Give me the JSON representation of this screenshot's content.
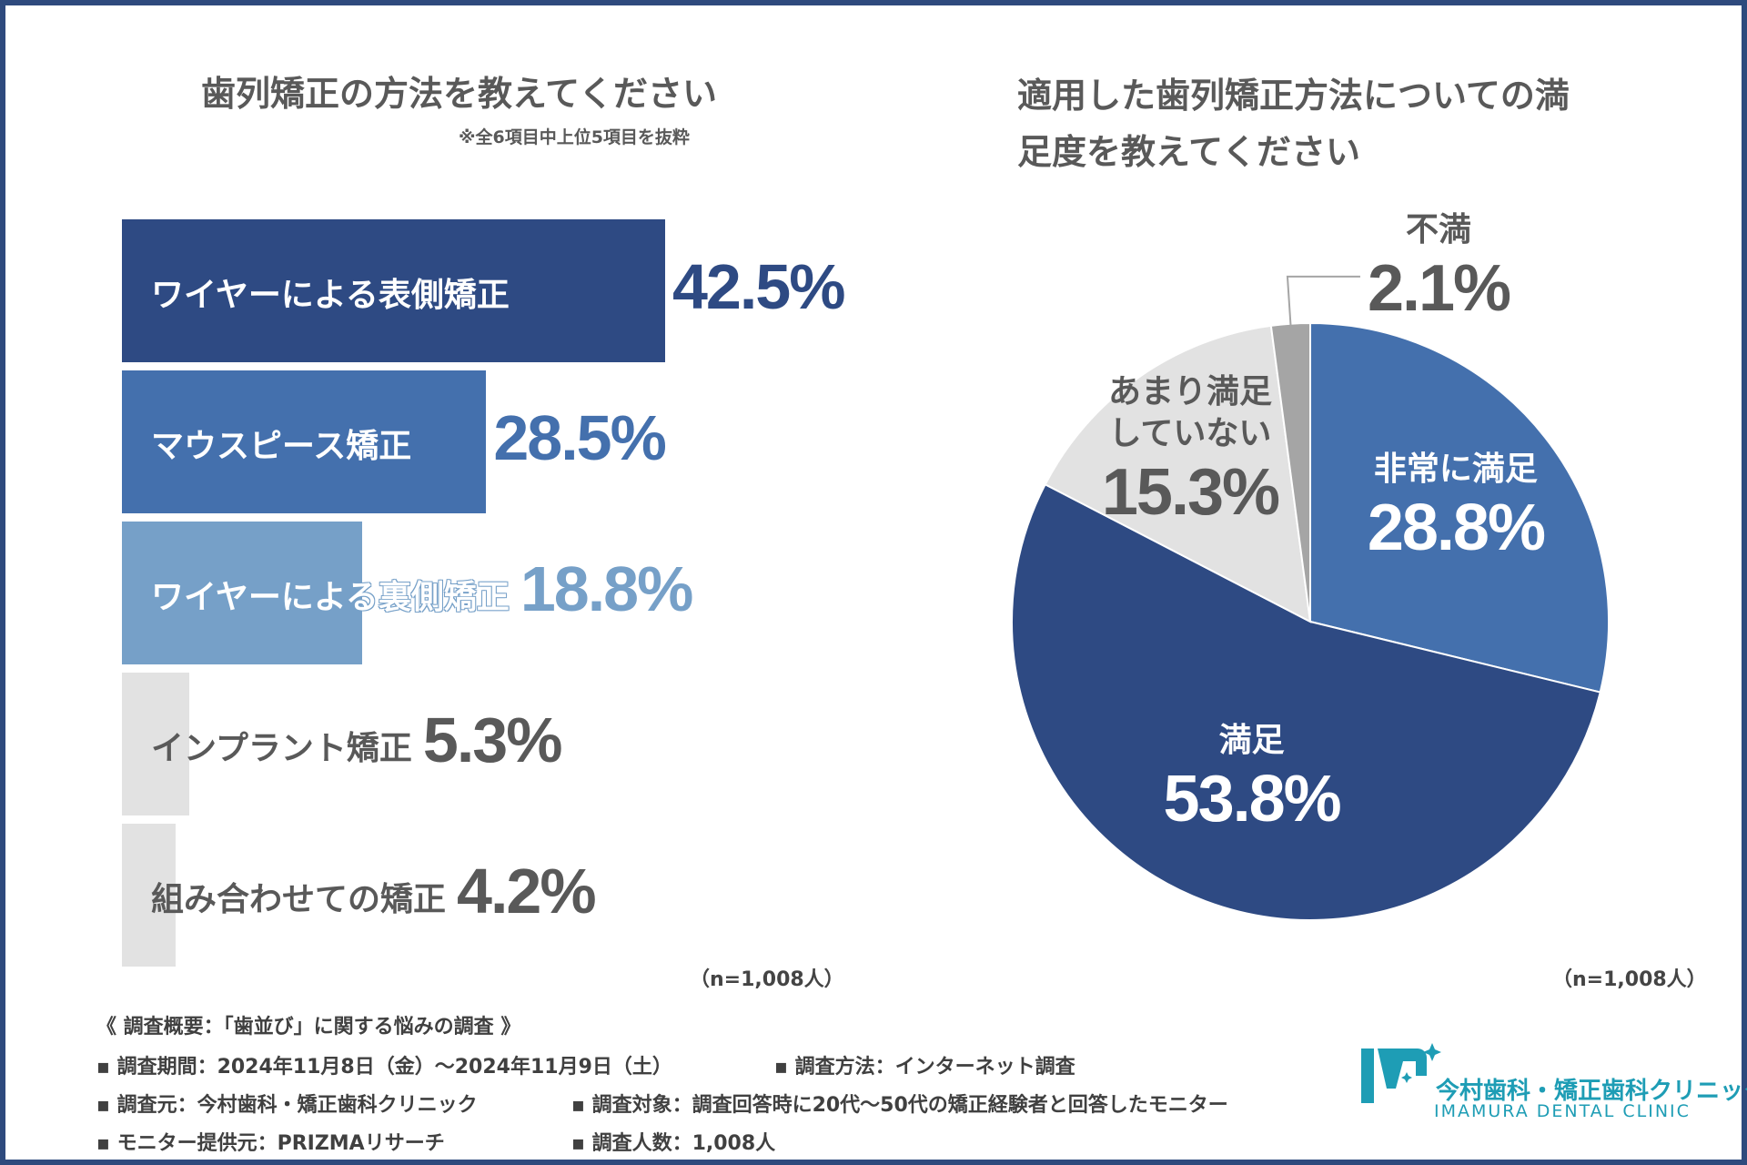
{
  "left": {
    "title": "歯列矯正の方法を教えてください",
    "note": "※全6項目中上位5項目を抜粋",
    "n_note": "（n=1,008人）"
  },
  "right": {
    "title_line1": "適用した歯列矯正方法についての満",
    "title_line2": "足度を教えてください",
    "n_note": "（n=1,008人）"
  },
  "colors": {
    "dark_navy": "#2e4a83",
    "mid_blue": "#4470ad",
    "light_blue": "#76a0c8",
    "light_gray": "#e2e2e2",
    "mid_gray": "#a5a5a5",
    "frame": "#2e4a7d",
    "teal": "#1e9db5"
  },
  "chart_data": [
    {
      "type": "bar",
      "orientation": "horizontal",
      "title": "歯列矯正の方法を教えてください",
      "subtitle": "※全6項目中上位5項目を抜粋",
      "categories": [
        "ワイヤーによる表側矯正",
        "マウスピース矯正",
        "ワイヤーによる裏側矯正",
        "インプラント矯正",
        "組み合わせての矯正"
      ],
      "values": [
        42.5,
        28.5,
        18.8,
        5.3,
        4.2
      ],
      "value_labels": [
        "42.5%",
        "28.5%",
        "18.8%",
        "5.3%",
        "4.2%"
      ],
      "unit": "%",
      "note": "（n=1,008人）"
    },
    {
      "type": "pie",
      "title": "適用した歯列矯正方法についての満足度を教えてください",
      "labels": [
        "非常に満足",
        "満足",
        "あまり満足していない",
        "不満"
      ],
      "label_lines": [
        [
          "非常に満足"
        ],
        [
          "満足"
        ],
        [
          "あまり満足",
          "していない"
        ],
        [
          "不満"
        ]
      ],
      "values": [
        28.8,
        53.8,
        15.3,
        2.1
      ],
      "value_labels": [
        "28.8%",
        "53.8%",
        "15.3%",
        "2.1%"
      ],
      "unit": "%",
      "note": "（n=1,008人）"
    }
  ],
  "footer": {
    "line1": "《 調査概要：「歯並び」に関する悩みの調査 》",
    "line2a": "▪ 調査期間：2024年11月8日（金）〜2024年11月9日（土）",
    "line2b": "▪ 調査方法：インターネット調査",
    "line3a": "▪ 調査元：今村歯科・矯正歯科クリニック",
    "line3b": "▪ 調査対象：調査回答時に20代〜50代の矯正経験者と回答したモニター",
    "line4a": "▪ モニター提供元：PRIZMAリサーチ",
    "line4b": "▪ 調査人数：1,008人"
  },
  "logo": {
    "name": "今村歯科・矯正歯科クリニック",
    "sub": "IMAMURA DENTAL CLINIC"
  }
}
